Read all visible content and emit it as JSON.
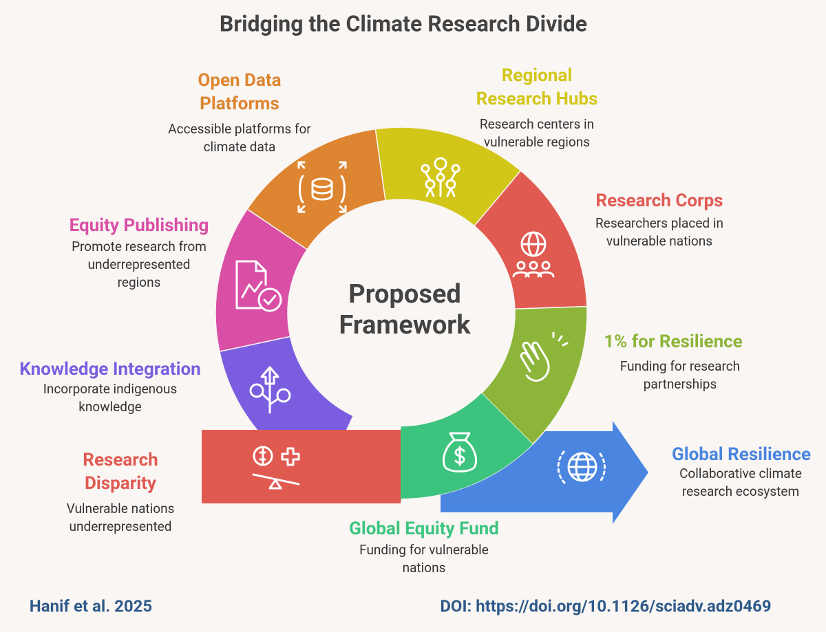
{
  "title": "Bridging the Climate Research Divide",
  "center": [
    "Proposed",
    "Framework"
  ],
  "stages": [
    {
      "title": [
        "Research",
        "Disparity"
      ],
      "description": [
        "Vulnerable nations",
        "underrepresented"
      ],
      "color": "#e05a52"
    },
    {
      "title": [
        "Knowledge Integration"
      ],
      "description": [
        "Incorporate indigenous",
        "knowledge"
      ],
      "color": "#7b5de0"
    },
    {
      "title": [
        "Equity Publishing"
      ],
      "description": [
        "Promote research from",
        "underrepresented",
        "regions"
      ],
      "color": "#d94fa6"
    },
    {
      "title": [
        "Open Data",
        "Platforms"
      ],
      "description": [
        "Accessible platforms for",
        "climate data"
      ],
      "color": "#dd8530"
    },
    {
      "title": [
        "Regional",
        "Research Hubs"
      ],
      "description": [
        "Research centers in",
        "vulnerable regions"
      ],
      "color": "#d2c619"
    },
    {
      "title": [
        "Research Corps"
      ],
      "description": [
        "Researchers placed in",
        "vulnerable nations"
      ],
      "color": "#e05a52"
    },
    {
      "title": [
        "1% for Resilience"
      ],
      "description": [
        "Funding for research",
        "partnerships"
      ],
      "color": "#8db53a"
    },
    {
      "title": [
        "Global Equity Fund"
      ],
      "description": [
        "Funding for vulnerable",
        "nations"
      ],
      "color": "#3cc47e"
    },
    {
      "title": [
        "Global Resilience"
      ],
      "description": [
        "Collaborative climate",
        "research ecosystem"
      ],
      "color": "#4a86e0"
    }
  ],
  "footer": {
    "citation": "Hanif et al. 2025",
    "doi": "DOI: https://doi.org/10.1126/sciadv.adz0469"
  }
}
